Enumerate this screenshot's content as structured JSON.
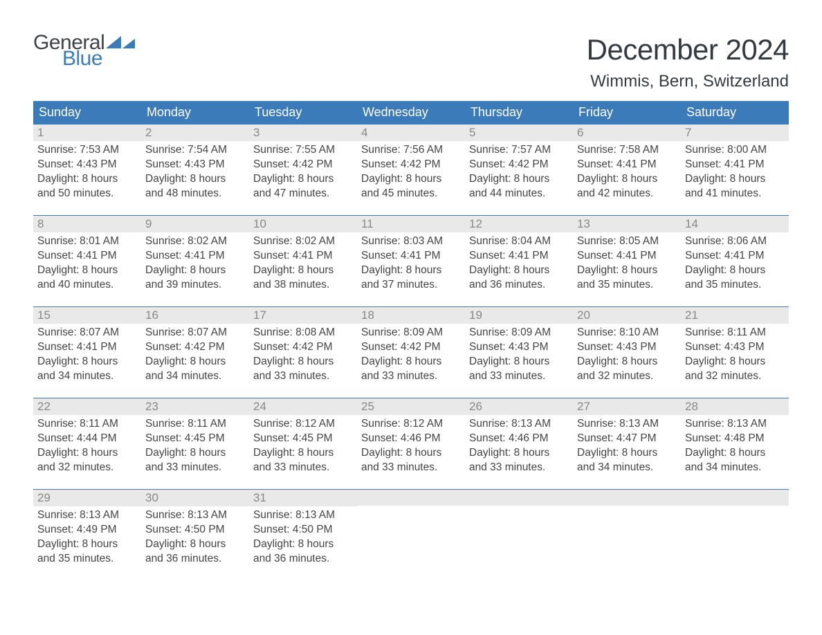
{
  "logo": {
    "word1": "General",
    "word2": "Blue",
    "flag_color": "#3c7bba"
  },
  "header": {
    "month_title": "December 2024",
    "location": "Wimmis, Bern, Switzerland"
  },
  "colors": {
    "header_bg": "#3c7bba",
    "header_text": "#ffffff",
    "daynum_bg": "#e9e9e9",
    "daynum_text": "#888888",
    "body_text": "#444444",
    "row_border": "#3c7bba",
    "title_text": "#333a40",
    "page_bg": "#ffffff"
  },
  "calendar": {
    "type": "table",
    "columns": [
      "Sunday",
      "Monday",
      "Tuesday",
      "Wednesday",
      "Thursday",
      "Friday",
      "Saturday"
    ],
    "weeks": [
      [
        {
          "day": "1",
          "sunrise": "Sunrise: 7:53 AM",
          "sunset": "Sunset: 4:43 PM",
          "daylight1": "Daylight: 8 hours",
          "daylight2": "and 50 minutes."
        },
        {
          "day": "2",
          "sunrise": "Sunrise: 7:54 AM",
          "sunset": "Sunset: 4:43 PM",
          "daylight1": "Daylight: 8 hours",
          "daylight2": "and 48 minutes."
        },
        {
          "day": "3",
          "sunrise": "Sunrise: 7:55 AM",
          "sunset": "Sunset: 4:42 PM",
          "daylight1": "Daylight: 8 hours",
          "daylight2": "and 47 minutes."
        },
        {
          "day": "4",
          "sunrise": "Sunrise: 7:56 AM",
          "sunset": "Sunset: 4:42 PM",
          "daylight1": "Daylight: 8 hours",
          "daylight2": "and 45 minutes."
        },
        {
          "day": "5",
          "sunrise": "Sunrise: 7:57 AM",
          "sunset": "Sunset: 4:42 PM",
          "daylight1": "Daylight: 8 hours",
          "daylight2": "and 44 minutes."
        },
        {
          "day": "6",
          "sunrise": "Sunrise: 7:58 AM",
          "sunset": "Sunset: 4:41 PM",
          "daylight1": "Daylight: 8 hours",
          "daylight2": "and 42 minutes."
        },
        {
          "day": "7",
          "sunrise": "Sunrise: 8:00 AM",
          "sunset": "Sunset: 4:41 PM",
          "daylight1": "Daylight: 8 hours",
          "daylight2": "and 41 minutes."
        }
      ],
      [
        {
          "day": "8",
          "sunrise": "Sunrise: 8:01 AM",
          "sunset": "Sunset: 4:41 PM",
          "daylight1": "Daylight: 8 hours",
          "daylight2": "and 40 minutes."
        },
        {
          "day": "9",
          "sunrise": "Sunrise: 8:02 AM",
          "sunset": "Sunset: 4:41 PM",
          "daylight1": "Daylight: 8 hours",
          "daylight2": "and 39 minutes."
        },
        {
          "day": "10",
          "sunrise": "Sunrise: 8:02 AM",
          "sunset": "Sunset: 4:41 PM",
          "daylight1": "Daylight: 8 hours",
          "daylight2": "and 38 minutes."
        },
        {
          "day": "11",
          "sunrise": "Sunrise: 8:03 AM",
          "sunset": "Sunset: 4:41 PM",
          "daylight1": "Daylight: 8 hours",
          "daylight2": "and 37 minutes."
        },
        {
          "day": "12",
          "sunrise": "Sunrise: 8:04 AM",
          "sunset": "Sunset: 4:41 PM",
          "daylight1": "Daylight: 8 hours",
          "daylight2": "and 36 minutes."
        },
        {
          "day": "13",
          "sunrise": "Sunrise: 8:05 AM",
          "sunset": "Sunset: 4:41 PM",
          "daylight1": "Daylight: 8 hours",
          "daylight2": "and 35 minutes."
        },
        {
          "day": "14",
          "sunrise": "Sunrise: 8:06 AM",
          "sunset": "Sunset: 4:41 PM",
          "daylight1": "Daylight: 8 hours",
          "daylight2": "and 35 minutes."
        }
      ],
      [
        {
          "day": "15",
          "sunrise": "Sunrise: 8:07 AM",
          "sunset": "Sunset: 4:41 PM",
          "daylight1": "Daylight: 8 hours",
          "daylight2": "and 34 minutes."
        },
        {
          "day": "16",
          "sunrise": "Sunrise: 8:07 AM",
          "sunset": "Sunset: 4:42 PM",
          "daylight1": "Daylight: 8 hours",
          "daylight2": "and 34 minutes."
        },
        {
          "day": "17",
          "sunrise": "Sunrise: 8:08 AM",
          "sunset": "Sunset: 4:42 PM",
          "daylight1": "Daylight: 8 hours",
          "daylight2": "and 33 minutes."
        },
        {
          "day": "18",
          "sunrise": "Sunrise: 8:09 AM",
          "sunset": "Sunset: 4:42 PM",
          "daylight1": "Daylight: 8 hours",
          "daylight2": "and 33 minutes."
        },
        {
          "day": "19",
          "sunrise": "Sunrise: 8:09 AM",
          "sunset": "Sunset: 4:43 PM",
          "daylight1": "Daylight: 8 hours",
          "daylight2": "and 33 minutes."
        },
        {
          "day": "20",
          "sunrise": "Sunrise: 8:10 AM",
          "sunset": "Sunset: 4:43 PM",
          "daylight1": "Daylight: 8 hours",
          "daylight2": "and 32 minutes."
        },
        {
          "day": "21",
          "sunrise": "Sunrise: 8:11 AM",
          "sunset": "Sunset: 4:43 PM",
          "daylight1": "Daylight: 8 hours",
          "daylight2": "and 32 minutes."
        }
      ],
      [
        {
          "day": "22",
          "sunrise": "Sunrise: 8:11 AM",
          "sunset": "Sunset: 4:44 PM",
          "daylight1": "Daylight: 8 hours",
          "daylight2": "and 32 minutes."
        },
        {
          "day": "23",
          "sunrise": "Sunrise: 8:11 AM",
          "sunset": "Sunset: 4:45 PM",
          "daylight1": "Daylight: 8 hours",
          "daylight2": "and 33 minutes."
        },
        {
          "day": "24",
          "sunrise": "Sunrise: 8:12 AM",
          "sunset": "Sunset: 4:45 PM",
          "daylight1": "Daylight: 8 hours",
          "daylight2": "and 33 minutes."
        },
        {
          "day": "25",
          "sunrise": "Sunrise: 8:12 AM",
          "sunset": "Sunset: 4:46 PM",
          "daylight1": "Daylight: 8 hours",
          "daylight2": "and 33 minutes."
        },
        {
          "day": "26",
          "sunrise": "Sunrise: 8:13 AM",
          "sunset": "Sunset: 4:46 PM",
          "daylight1": "Daylight: 8 hours",
          "daylight2": "and 33 minutes."
        },
        {
          "day": "27",
          "sunrise": "Sunrise: 8:13 AM",
          "sunset": "Sunset: 4:47 PM",
          "daylight1": "Daylight: 8 hours",
          "daylight2": "and 34 minutes."
        },
        {
          "day": "28",
          "sunrise": "Sunrise: 8:13 AM",
          "sunset": "Sunset: 4:48 PM",
          "daylight1": "Daylight: 8 hours",
          "daylight2": "and 34 minutes."
        }
      ],
      [
        {
          "day": "29",
          "sunrise": "Sunrise: 8:13 AM",
          "sunset": "Sunset: 4:49 PM",
          "daylight1": "Daylight: 8 hours",
          "daylight2": "and 35 minutes."
        },
        {
          "day": "30",
          "sunrise": "Sunrise: 8:13 AM",
          "sunset": "Sunset: 4:50 PM",
          "daylight1": "Daylight: 8 hours",
          "daylight2": "and 36 minutes."
        },
        {
          "day": "31",
          "sunrise": "Sunrise: 8:13 AM",
          "sunset": "Sunset: 4:50 PM",
          "daylight1": "Daylight: 8 hours",
          "daylight2": "and 36 minutes."
        },
        null,
        null,
        null,
        null
      ]
    ]
  }
}
